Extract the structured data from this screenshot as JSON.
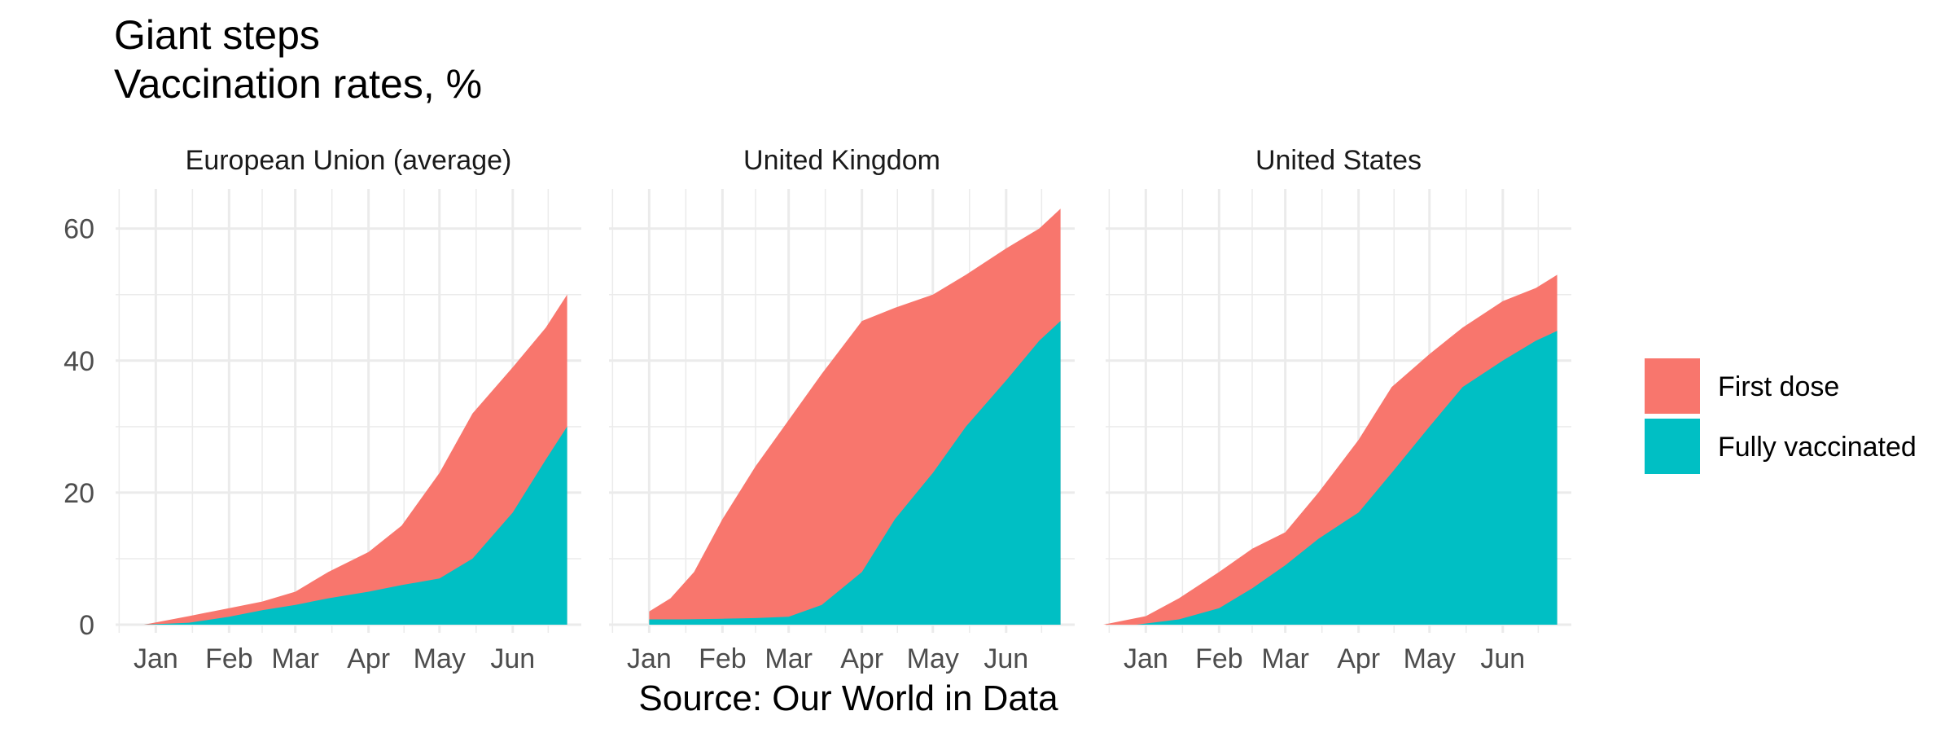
{
  "title_line1": "Giant steps",
  "title_line2": "Vaccination rates, %",
  "caption": "Source: Our World in Data",
  "colors": {
    "first_dose": "#F8766D",
    "fully_vaccinated": "#00BFC4",
    "grid": "#EBEBEB"
  },
  "chart_data": {
    "type": "area",
    "stacked": false,
    "facets": [
      "European Union (average)",
      "United Kingdom",
      "United States"
    ],
    "x_ticks": [
      "Jan",
      "Feb",
      "Mar",
      "Apr",
      "May",
      "Jun"
    ],
    "x_tick_dates": [
      "2021-01-01",
      "2021-02-01",
      "2021-03-01",
      "2021-04-01",
      "2021-05-01",
      "2021-06-01"
    ],
    "xlim": [
      "2020-12-15",
      "2021-06-30"
    ],
    "y_ticks": [
      0,
      20,
      40,
      60
    ],
    "ylim": [
      0,
      66
    ],
    "grid": true,
    "legend_position": "right",
    "series_names": [
      "First dose",
      "Fully vaccinated"
    ],
    "panels": [
      {
        "facet": "European Union (average)",
        "first_dose": {
          "x": [
            "2020-12-27",
            "2021-01-15",
            "2021-02-01",
            "2021-02-15",
            "2021-03-01",
            "2021-03-15",
            "2021-04-01",
            "2021-04-15",
            "2021-05-01",
            "2021-05-15",
            "2021-06-01",
            "2021-06-15",
            "2021-06-24"
          ],
          "y": [
            0,
            1.3,
            2.5,
            3.5,
            5,
            8,
            11,
            15,
            23,
            32,
            39,
            45,
            50
          ]
        },
        "fully_vaccinated": {
          "x": [
            "2020-12-27",
            "2021-01-15",
            "2021-02-01",
            "2021-02-15",
            "2021-03-01",
            "2021-03-15",
            "2021-04-01",
            "2021-04-15",
            "2021-05-01",
            "2021-05-15",
            "2021-06-01",
            "2021-06-15",
            "2021-06-24"
          ],
          "y": [
            0,
            0.3,
            1.2,
            2.2,
            3,
            4,
            5,
            6,
            7,
            10,
            17,
            25,
            30
          ]
        }
      },
      {
        "facet": "United Kingdom",
        "first_dose": {
          "x": [
            "2021-01-01",
            "2021-01-10",
            "2021-01-20",
            "2021-02-01",
            "2021-02-15",
            "2021-03-01",
            "2021-03-15",
            "2021-04-01",
            "2021-04-15",
            "2021-05-01",
            "2021-05-15",
            "2021-06-01",
            "2021-06-15",
            "2021-06-24"
          ],
          "y": [
            2,
            4,
            8,
            16,
            24,
            31,
            38,
            46,
            48,
            50,
            53,
            57,
            60,
            63
          ]
        },
        "fully_vaccinated": {
          "x": [
            "2021-01-01",
            "2021-01-15",
            "2021-02-01",
            "2021-02-15",
            "2021-03-01",
            "2021-03-15",
            "2021-04-01",
            "2021-04-15",
            "2021-05-01",
            "2021-05-15",
            "2021-06-01",
            "2021-06-15",
            "2021-06-24"
          ],
          "y": [
            0.8,
            0.8,
            0.9,
            1,
            1.2,
            3,
            8,
            16,
            23,
            30,
            37,
            43,
            46
          ]
        }
      },
      {
        "facet": "United States",
        "first_dose": {
          "x": [
            "2020-12-14",
            "2021-01-01",
            "2021-01-15",
            "2021-02-01",
            "2021-02-15",
            "2021-03-01",
            "2021-03-15",
            "2021-04-01",
            "2021-04-15",
            "2021-05-01",
            "2021-05-15",
            "2021-06-01",
            "2021-06-15",
            "2021-06-24"
          ],
          "y": [
            0,
            1.3,
            4,
            8,
            11.5,
            14,
            20,
            28,
            36,
            41,
            45,
            49,
            51,
            53
          ]
        },
        "fully_vaccinated": {
          "x": [
            "2020-12-28",
            "2021-01-15",
            "2021-02-01",
            "2021-02-15",
            "2021-03-01",
            "2021-03-15",
            "2021-04-01",
            "2021-04-15",
            "2021-05-01",
            "2021-05-15",
            "2021-06-01",
            "2021-06-15",
            "2021-06-24"
          ],
          "y": [
            0,
            0.8,
            2.5,
            5.5,
            9,
            13,
            17,
            23,
            30,
            36,
            40,
            43,
            44.5
          ]
        }
      }
    ]
  }
}
